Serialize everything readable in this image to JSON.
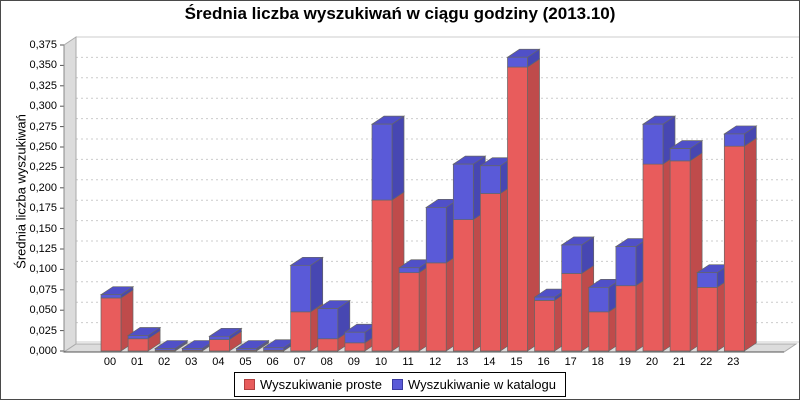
{
  "title": "Średnia liczba wyszukiwań w ciągu godziny (2013.10)",
  "y_axis": {
    "label": "Średnia liczba wyszukiwań",
    "tick_labels": [
      "0,000",
      "0,025",
      "0,050",
      "0,075",
      "0,100",
      "0,125",
      "0,150",
      "0,175",
      "0,200",
      "0,225",
      "0,250",
      "0,275",
      "0,300",
      "0,325",
      "0,350",
      "0,375"
    ]
  },
  "x_axis": {
    "categories": [
      "00",
      "01",
      "02",
      "03",
      "04",
      "05",
      "06",
      "07",
      "08",
      "09",
      "10",
      "11",
      "12",
      "13",
      "14",
      "15",
      "16",
      "17",
      "18",
      "19",
      "20",
      "21",
      "22",
      "23"
    ]
  },
  "legend": [
    {
      "label": "Wyszukiwanie proste",
      "color": "#e85c5c",
      "border": "#b04040"
    },
    {
      "label": "Wyszukiwanie w katalogu",
      "color": "#5a5ad8",
      "border": "#3a3aa0"
    }
  ],
  "chart_data": {
    "type": "bar",
    "stacked": true,
    "effect": "3d",
    "title": "Średnia liczba wyszukiwań w ciągu godziny (2013.10)",
    "xlabel": "",
    "ylabel": "Średnia liczba wyszukiwań",
    "ylim": [
      0,
      0.375
    ],
    "y_step": 0.025,
    "grid": true,
    "legend_position": "bottom",
    "categories": [
      "00",
      "01",
      "02",
      "03",
      "04",
      "05",
      "06",
      "07",
      "08",
      "09",
      "10",
      "11",
      "12",
      "13",
      "14",
      "15",
      "16",
      "17",
      "18",
      "19",
      "20",
      "21",
      "22",
      "23"
    ],
    "series": [
      {
        "name": "Wyszukiwanie proste",
        "color": "#e85c5c",
        "side_color": "#bf4b4b",
        "top_color": "#d35353",
        "values": [
          0.065,
          0.015,
          0.001,
          0.001,
          0.014,
          0.001,
          0.001,
          0.048,
          0.015,
          0.01,
          0.185,
          0.096,
          0.108,
          0.161,
          0.193,
          0.348,
          0.062,
          0.095,
          0.048,
          0.08,
          0.229,
          0.233,
          0.078,
          0.251
        ]
      },
      {
        "name": "Wyszukiwanie w katalogu",
        "color": "#5a5ad8",
        "side_color": "#4747b2",
        "top_color": "#5050c8",
        "values": [
          0.004,
          0.004,
          0.002,
          0.002,
          0.004,
          0.002,
          0.003,
          0.057,
          0.037,
          0.013,
          0.093,
          0.006,
          0.068,
          0.068,
          0.034,
          0.012,
          0.004,
          0.035,
          0.03,
          0.048,
          0.049,
          0.015,
          0.018,
          0.015
        ]
      }
    ]
  }
}
